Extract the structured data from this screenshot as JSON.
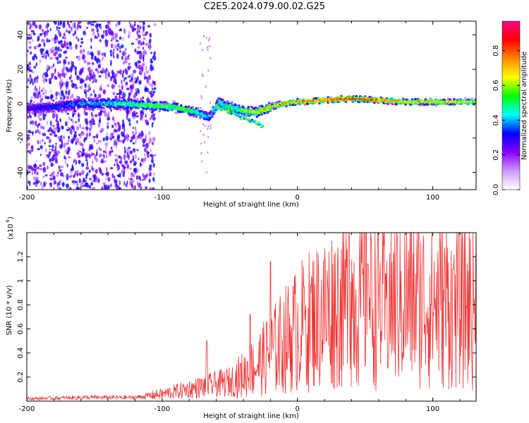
{
  "title": "C2E5.2024.079.00.02.G25",
  "chart_data": [
    {
      "type": "heatmap",
      "xlabel": "Height of straight line (km)",
      "ylabel": "Frequency (Hz)",
      "xlim": [
        -200,
        132
      ],
      "ylim": [
        -50,
        48
      ],
      "xticks": [
        -200,
        -100,
        0,
        100
      ],
      "yticks": [
        -40,
        -20,
        0,
        20,
        40
      ],
      "colorbar": {
        "label": "Normalized spectral amplitude",
        "range": [
          0,
          0.97
        ],
        "ticks": [
          0.0,
          0.2,
          0.4,
          0.6,
          0.8
        ],
        "colors": [
          "#ffffff",
          "#cc99ff",
          "#8800ff",
          "#0000ff",
          "#00ffff",
          "#00ff00",
          "#ffff00",
          "#ff8800",
          "#ff0000",
          "#ff0088"
        ]
      },
      "ridge": {
        "x": [
          -200,
          -180,
          -160,
          -130,
          -110,
          -90,
          -75,
          -65,
          -58,
          -50,
          -40,
          -30,
          -20,
          -10,
          0,
          20,
          40,
          60,
          80,
          100,
          132
        ],
        "freq": [
          -3,
          -2,
          0,
          0,
          -1,
          -2,
          -5,
          -8,
          1,
          -2,
          -4,
          -5,
          -2,
          0,
          1,
          2,
          3,
          2,
          1,
          1,
          1
        ],
        "amplitude": [
          0.3,
          0.35,
          0.4,
          0.5,
          0.6,
          0.6,
          0.55,
          0.45,
          0.5,
          0.55,
          0.6,
          0.7,
          0.75,
          0.8,
          0.8,
          0.85,
          0.9,
          0.85,
          0.75,
          0.75,
          0.7
        ]
      }
    },
    {
      "type": "line",
      "xlabel": "Height of straight line (km)",
      "ylabel": "SNR (10 * v/v)",
      "yscale_label": "(x10",
      "yscale_exp": "4",
      "xlim": [
        -200,
        132
      ],
      "ylim": [
        0,
        1.4
      ],
      "xticks": [
        -200,
        -100,
        0,
        100
      ],
      "yticks": [
        0.2,
        0.4,
        0.6,
        0.8,
        1.0,
        1.2
      ],
      "color": "#ee3333",
      "envelope": {
        "x": [
          -200,
          -160,
          -120,
          -100,
          -90,
          -80,
          -70,
          -60,
          -50,
          -40,
          -30,
          -20,
          -10,
          0,
          10,
          20,
          30,
          40,
          50,
          60,
          70,
          80,
          90,
          100,
          110,
          120,
          132
        ],
        "y": [
          0.02,
          0.03,
          0.03,
          0.06,
          0.08,
          0.1,
          0.12,
          0.14,
          0.16,
          0.22,
          0.3,
          0.4,
          0.5,
          0.6,
          0.68,
          0.74,
          0.8,
          0.84,
          0.85,
          0.84,
          0.84,
          0.84,
          0.84,
          0.83,
          0.82,
          0.82,
          0.83
        ]
      },
      "spikes": [
        {
          "x": -67,
          "y": 0.5
        },
        {
          "x": -35,
          "y": 0.72
        },
        {
          "x": -20,
          "y": 1.16
        },
        {
          "x": 5,
          "y": 0.95
        },
        {
          "x": 38,
          "y": 1.4
        },
        {
          "x": 52,
          "y": 1.14
        },
        {
          "x": 65,
          "y": 1.06
        },
        {
          "x": 115,
          "y": 1.1
        }
      ]
    }
  ]
}
